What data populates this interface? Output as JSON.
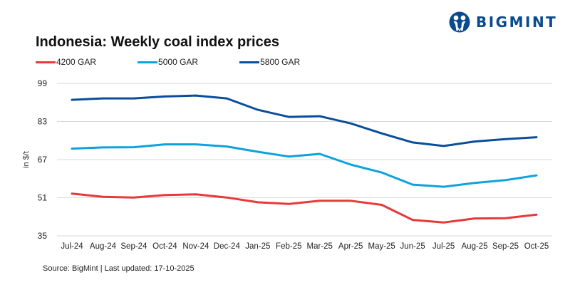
{
  "brand": {
    "name": "BIGMINT",
    "icon": "bigmint-people-logo-icon",
    "color": "#0a4a8f"
  },
  "source_note": "Source: BigMint | Last updated: 17-10-2025",
  "chart_data": {
    "type": "line",
    "title": "Indonesia: Weekly coal index prices",
    "xlabel": "",
    "ylabel": "in $/t",
    "ylim": [
      35,
      99
    ],
    "yticks": [
      99,
      83,
      67,
      51,
      35
    ],
    "grid": true,
    "legend_position": "top-left",
    "categories": [
      "Jul-24",
      "Aug-24",
      "Sep-24",
      "Oct-24",
      "Nov-24",
      "Dec-24",
      "Jan-25",
      "Feb-25",
      "Mar-25",
      "Apr-25",
      "May-25",
      "Jun-25",
      "Jul-25",
      "Aug-25",
      "Sep-25",
      "Oct-25"
    ],
    "series": [
      {
        "name": "4200 GAR",
        "color": "#e8393a",
        "values": [
          52.7,
          51.4,
          51.1,
          52.1,
          52.4,
          51.1,
          49.1,
          48.4,
          49.7,
          49.7,
          48.0,
          41.7,
          40.6,
          42.3,
          42.4,
          43.9
        ]
      },
      {
        "name": "5000 GAR",
        "color": "#0ea2dc",
        "values": [
          71.6,
          72.1,
          72.2,
          73.4,
          73.4,
          72.5,
          70.3,
          68.3,
          69.4,
          64.9,
          61.6,
          56.5,
          55.6,
          57.2,
          58.4,
          60.4
        ]
      },
      {
        "name": "5800 GAR",
        "color": "#0a4e9b",
        "values": [
          92.1,
          92.7,
          92.7,
          93.5,
          93.9,
          92.7,
          87.9,
          84.9,
          85.2,
          82.2,
          78.0,
          74.2,
          72.7,
          74.6,
          75.6,
          76.4
        ]
      }
    ]
  }
}
